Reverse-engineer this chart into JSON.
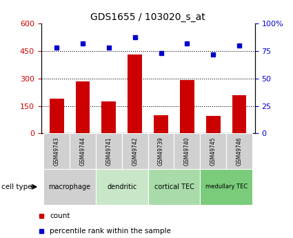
{
  "title": "GDS1655 / 103020_s_at",
  "samples": [
    "GSM49743",
    "GSM49744",
    "GSM49741",
    "GSM49742",
    "GSM49739",
    "GSM49740",
    "GSM49745",
    "GSM49746"
  ],
  "counts": [
    190,
    285,
    175,
    430,
    100,
    290,
    95,
    210
  ],
  "percentiles": [
    78,
    82,
    78,
    88,
    73,
    82,
    72,
    80
  ],
  "bar_color": "#cc0000",
  "dot_color": "#0000cc",
  "left_ylim": [
    0,
    600
  ],
  "right_ylim": [
    0,
    100
  ],
  "left_yticks": [
    0,
    150,
    300,
    450,
    600
  ],
  "right_yticks": [
    0,
    25,
    50,
    75,
    100
  ],
  "right_yticklabels": [
    "0",
    "25",
    "50",
    "75",
    "100%"
  ],
  "cell_types": [
    {
      "label": "macrophage",
      "samples": [
        0,
        1
      ],
      "color": "#d0d0d0"
    },
    {
      "label": "dendritic",
      "samples": [
        2,
        3
      ],
      "color": "#c8e6c8"
    },
    {
      "label": "cortical TEC",
      "samples": [
        4,
        5
      ],
      "color": "#a8dba8"
    },
    {
      "label": "medullary TEC",
      "samples": [
        6,
        7
      ],
      "color": "#7acc7a"
    }
  ],
  "legend_items": [
    {
      "label": "count",
      "color": "#cc0000"
    },
    {
      "label": "percentile rank within the sample",
      "color": "#0000cc"
    }
  ],
  "cell_type_label": "cell type",
  "bg_color": "#ffffff",
  "title_fontsize": 10,
  "tick_fontsize": 8,
  "bar_width": 0.55
}
